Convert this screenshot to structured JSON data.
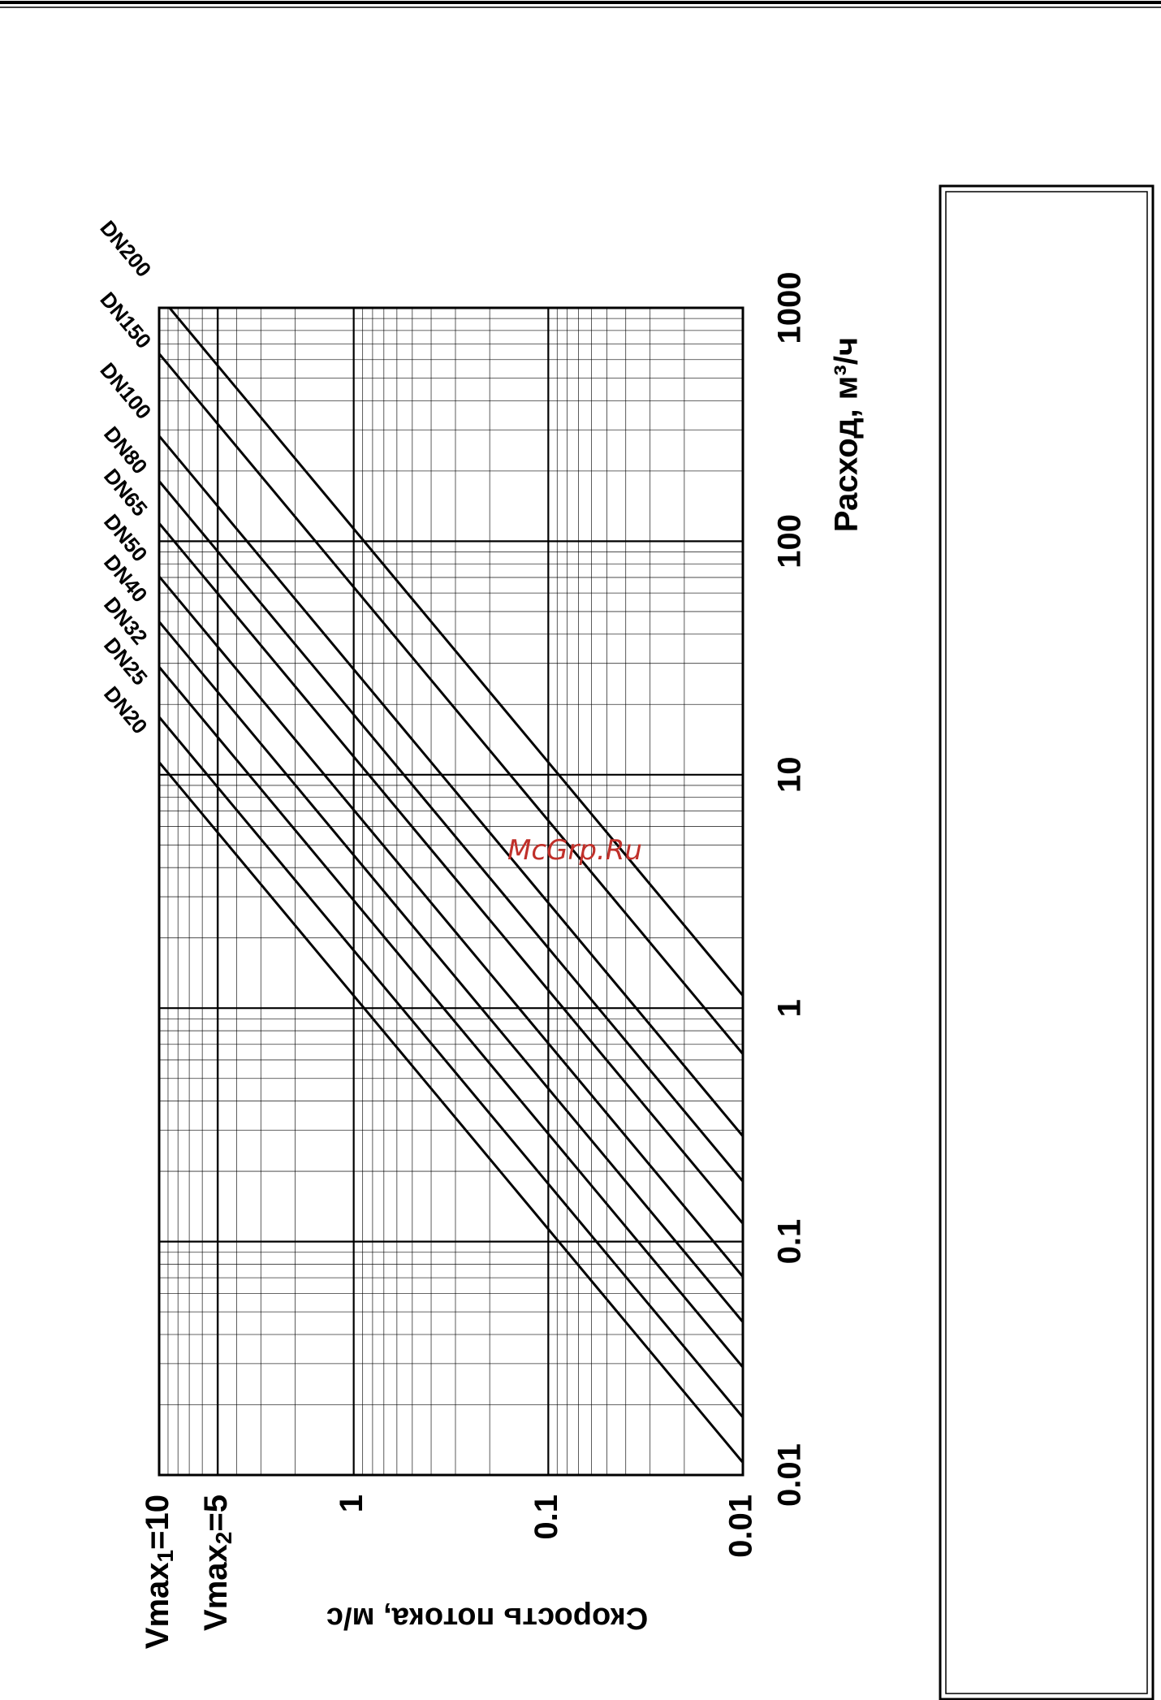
{
  "watermark": "McGrp.Ru",
  "chart_data": {
    "type": "line",
    "orientation": "rotated-90",
    "xscale": "log",
    "yscale": "log",
    "grid": true,
    "xlabel": "Расход, м³/ч",
    "ylabel": "Скорость потока, м/с",
    "xlim": [
      0.01,
      1000
    ],
    "ylim": [
      0.01,
      10
    ],
    "x_ticks": [
      "0.01",
      "0.1",
      "1",
      "10",
      "100",
      "1000"
    ],
    "x_tick_values": [
      0.01,
      0.1,
      1,
      10,
      100,
      1000
    ],
    "y_ticks": [
      {
        "value": 10,
        "label": "Vmax",
        "sub": "1",
        "suffix": "=10"
      },
      {
        "value": 5,
        "label": "Vmax",
        "sub": "2",
        "suffix": "=5"
      },
      {
        "value": 1,
        "label": "1"
      },
      {
        "value": 0.1,
        "label": "0.1"
      },
      {
        "value": 0.01,
        "label": "0.01"
      }
    ],
    "series": [
      {
        "name": "DN20",
        "d_mm": 20
      },
      {
        "name": "DN25",
        "d_mm": 25
      },
      {
        "name": "DN32",
        "d_mm": 32
      },
      {
        "name": "DN40",
        "d_mm": 40
      },
      {
        "name": "DN50",
        "d_mm": 50
      },
      {
        "name": "DN65",
        "d_mm": 65
      },
      {
        "name": "DN80",
        "d_mm": 80
      },
      {
        "name": "DN100",
        "d_mm": 100
      },
      {
        "name": "DN150",
        "d_mm": 150
      },
      {
        "name": "DN200",
        "d_mm": 200
      }
    ]
  }
}
